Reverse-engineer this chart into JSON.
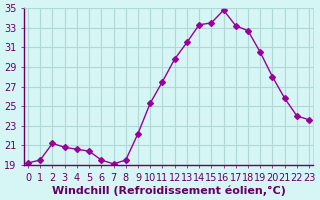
{
  "x": [
    0,
    1,
    2,
    3,
    4,
    5,
    6,
    7,
    8,
    9,
    10,
    11,
    12,
    13,
    14,
    15,
    16,
    17,
    18,
    19,
    20,
    21,
    22,
    23
  ],
  "y": [
    19.2,
    19.5,
    21.2,
    20.8,
    20.6,
    20.4,
    19.5,
    19.1,
    19.5,
    22.2,
    25.3,
    27.5,
    29.8,
    31.5,
    33.3,
    33.5,
    34.8,
    33.2,
    32.7,
    30.5,
    28.0,
    25.8,
    24.0,
    23.6
  ],
  "xlabel": "Windchill (Refroidissement éolien,°C)",
  "ylim": [
    19,
    35
  ],
  "xlim_min": -0.3,
  "xlim_max": 23.3,
  "yticks": [
    19,
    21,
    23,
    25,
    27,
    29,
    31,
    33,
    35
  ],
  "xticks": [
    0,
    1,
    2,
    3,
    4,
    5,
    6,
    7,
    8,
    9,
    10,
    11,
    12,
    13,
    14,
    15,
    16,
    17,
    18,
    19,
    20,
    21,
    22,
    23
  ],
  "line_color": "#990099",
  "marker": "D",
  "marker_size": 3,
  "bg_color": "#d6f5f5",
  "grid_color": "#b0d8d8",
  "label_color": "#660066",
  "tick_color": "#660066",
  "xlabel_fontsize": 8,
  "tick_fontsize": 7,
  "linewidth": 1.0
}
